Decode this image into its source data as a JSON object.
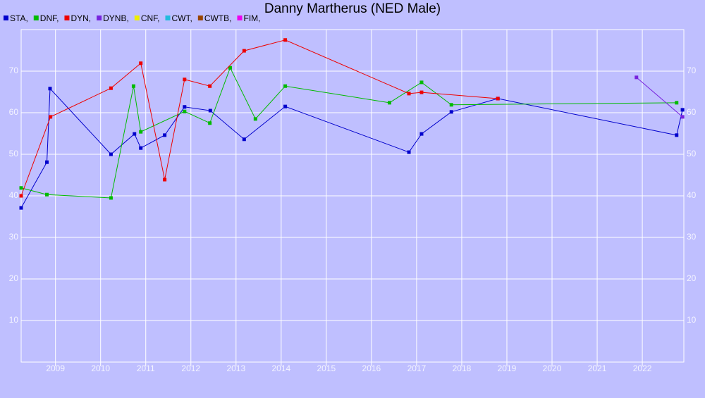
{
  "chart_data": {
    "type": "line",
    "title": "Danny Martherus (NED Male)",
    "xlim": [
      2008.24,
      2022.92
    ],
    "ylim": [
      0,
      80
    ],
    "xticks": [
      2009,
      2010,
      2011,
      2012,
      2013,
      2014,
      2015,
      2016,
      2017,
      2018,
      2019,
      2020,
      2021,
      2022
    ],
    "yticks": [
      10,
      20,
      30,
      40,
      50,
      60,
      70
    ],
    "grid": true,
    "series": [
      {
        "name": "STA,",
        "color": "#0000cc",
        "x": [
          2008.24,
          2008.81,
          2008.88,
          2010.23,
          2010.75,
          2010.89,
          2011.42,
          2011.86,
          2012.43,
          2013.18,
          2014.09,
          2016.83,
          2017.11,
          2017.77,
          2018.8,
          2022.76,
          2022.89
        ],
        "values": [
          37.1,
          48.1,
          65.8,
          50.0,
          54.9,
          51.5,
          54.6,
          61.4,
          60.5,
          53.6,
          61.5,
          50.5,
          54.9,
          60.2,
          63.4,
          54.6,
          60.7
        ]
      },
      {
        "name": "DNF,",
        "color": "#00bb00",
        "x": [
          2008.24,
          2008.81,
          2010.23,
          2010.73,
          2010.89,
          2011.86,
          2012.42,
          2012.87,
          2013.43,
          2014.09,
          2016.4,
          2017.11,
          2017.77,
          2022.76
        ],
        "values": [
          41.9,
          40.3,
          39.5,
          66.4,
          55.4,
          60.3,
          57.5,
          70.8,
          58.5,
          66.4,
          62.4,
          67.3,
          61.9,
          62.4
        ]
      },
      {
        "name": "DYN,",
        "color": "#ee0000",
        "x": [
          2008.24,
          2008.89,
          2010.23,
          2010.89,
          2011.42,
          2011.86,
          2012.42,
          2013.18,
          2014.09,
          2016.83,
          2017.11,
          2018.8
        ],
        "values": [
          40.0,
          59.0,
          65.9,
          71.9,
          43.9,
          68.0,
          66.4,
          74.9,
          77.5,
          64.6,
          64.9,
          63.4
        ]
      },
      {
        "name": "DYNB,",
        "color": "#7722dd",
        "x": [
          2021.87,
          2022.89
        ],
        "values": [
          68.5,
          59.0
        ]
      },
      {
        "name": "CNF,",
        "color": "#eeee00",
        "x": [],
        "values": []
      },
      {
        "name": "CWT,",
        "color": "#22bbdd",
        "x": [],
        "values": []
      },
      {
        "name": "CWTB,",
        "color": "#994400",
        "x": [],
        "values": []
      },
      {
        "name": "FIM,",
        "color": "#ee00ee",
        "x": [],
        "values": []
      }
    ]
  }
}
